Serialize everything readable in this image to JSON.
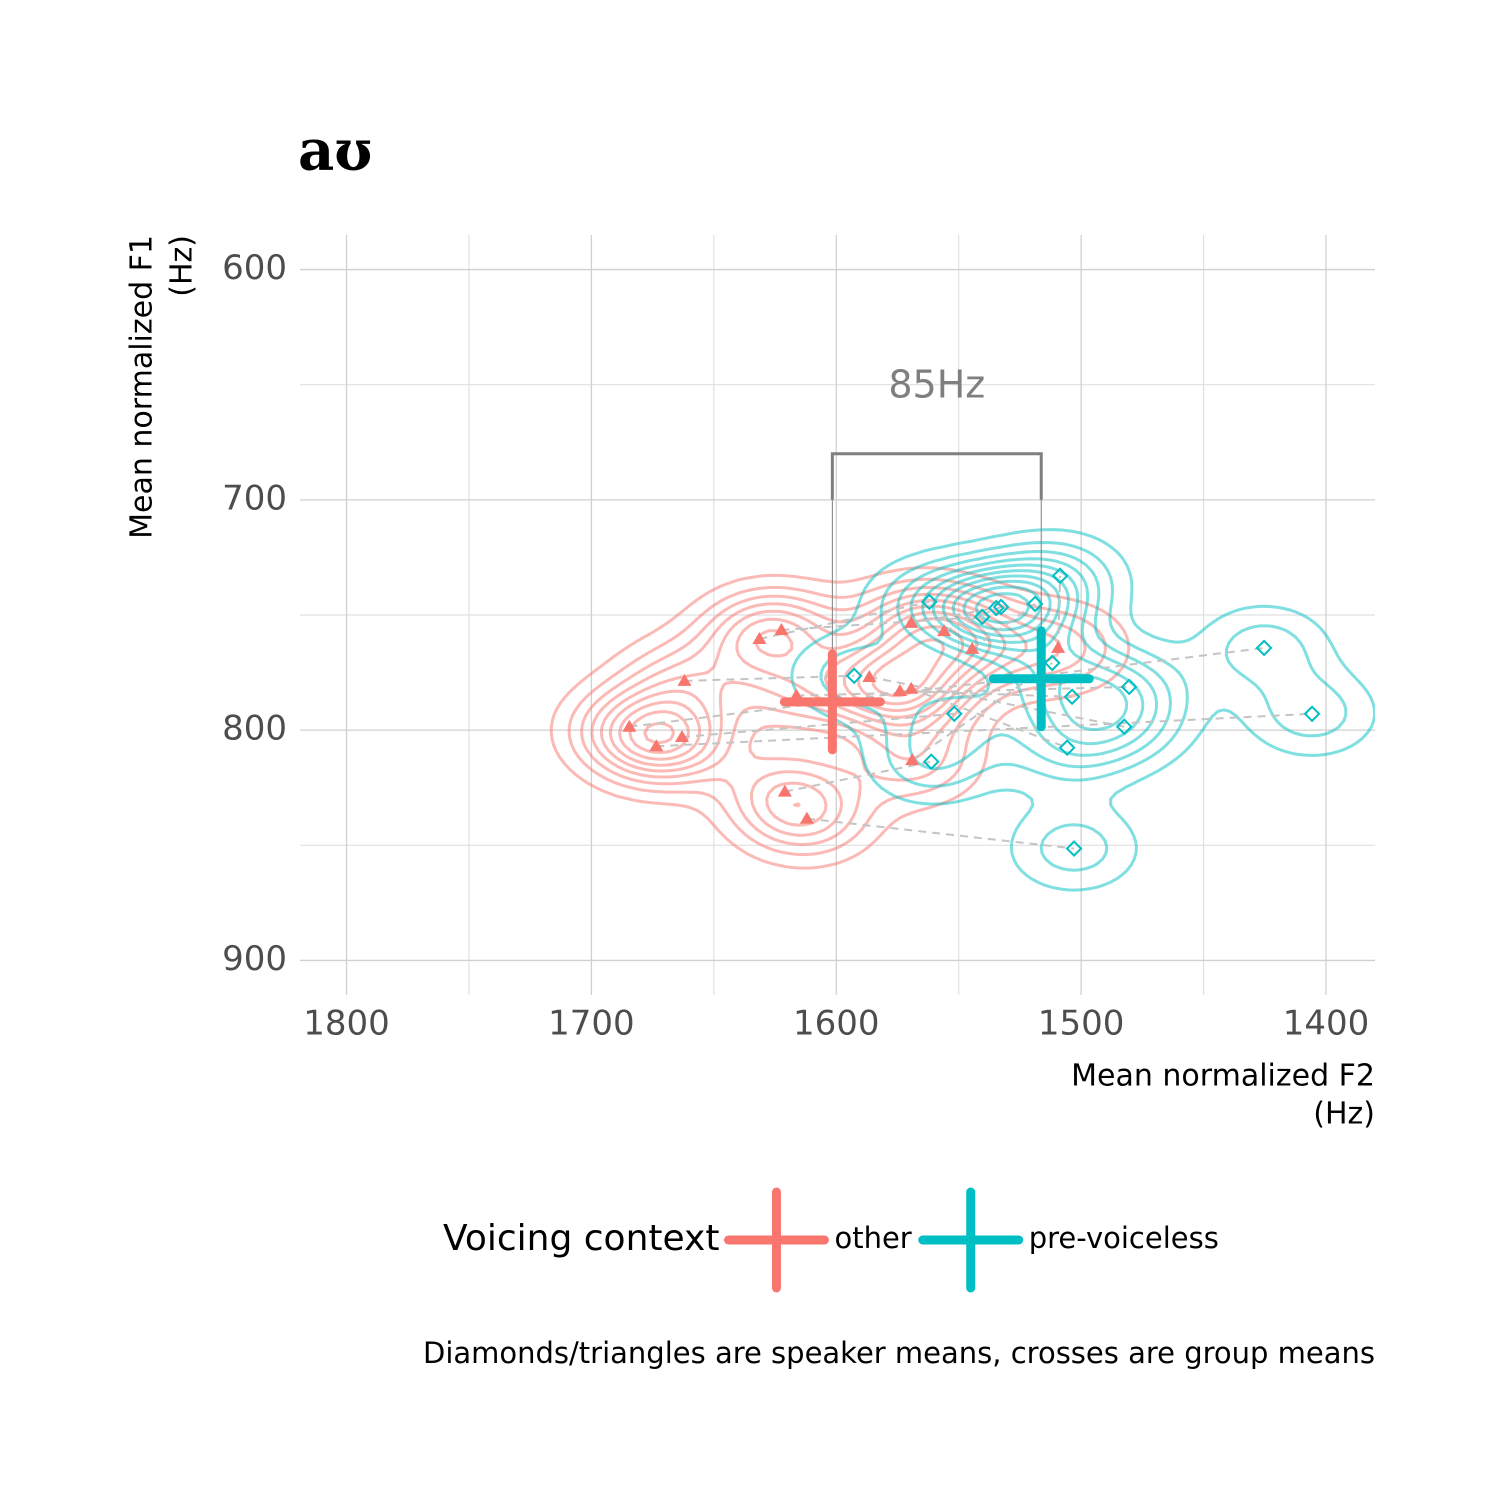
{
  "chart_data": {
    "type": "scatter",
    "title": "aʊ",
    "x_label": [
      "Mean normalized F2",
      "(Hz)"
    ],
    "y_label": [
      "Mean normalized F1",
      "(Hz)"
    ],
    "caption": "Diamonds/triangles are speaker means, crosses are group means",
    "legend_title": "Voicing context",
    "xlim": [
      1819,
      1380
    ],
    "ylim": [
      585,
      915
    ],
    "xticks": [
      1800,
      1700,
      1600,
      1500,
      1400
    ],
    "yticks": [
      600,
      700,
      800,
      900
    ],
    "minor_xticks": [
      1750,
      1650,
      1550,
      1450
    ],
    "minor_yticks": [
      650,
      750,
      850
    ],
    "grid": true,
    "series": [
      {
        "name": "other",
        "color": "#F8766D",
        "marker": "triangle",
        "x": [
          1684.5,
          1673.5,
          1663,
          1662,
          1631.4,
          1622.4,
          1616.3,
          1621,
          1612,
          1586.5,
          1574,
          1569.4,
          1569.4,
          1556,
          1569,
          1544.5,
          1509.4
        ],
        "y": [
          798.5,
          807,
          803,
          778.6,
          760.4,
          756.5,
          785,
          826.7,
          838.4,
          776.9,
          783,
          782,
          753.4,
          757,
          813,
          764.7,
          764.3
        ],
        "mean_x": 1601.6,
        "mean_y": 787.7
      },
      {
        "name": "pre-voiceless",
        "color": "#00BFC4",
        "marker": "diamond",
        "x": [
          1425.3,
          1405.7,
          1551.8,
          1592.7,
          1562,
          1540.4,
          1480.4,
          1561.2,
          1502.9,
          1482.4,
          1503.7,
          1505.7,
          1534.7,
          1532.7,
          1511.8,
          1518.8,
          1508.6
        ],
        "y": [
          764.3,
          792.9,
          792.9,
          776.4,
          744.3,
          750.8,
          781.2,
          813.7,
          851.4,
          798.5,
          785.5,
          807.6,
          747,
          746.5,
          770.8,
          745.2,
          733
        ],
        "mean_x": 1516.3,
        "mean_y": 777.7
      }
    ],
    "annotation": {
      "text": "85Hz",
      "y": 680
    }
  }
}
